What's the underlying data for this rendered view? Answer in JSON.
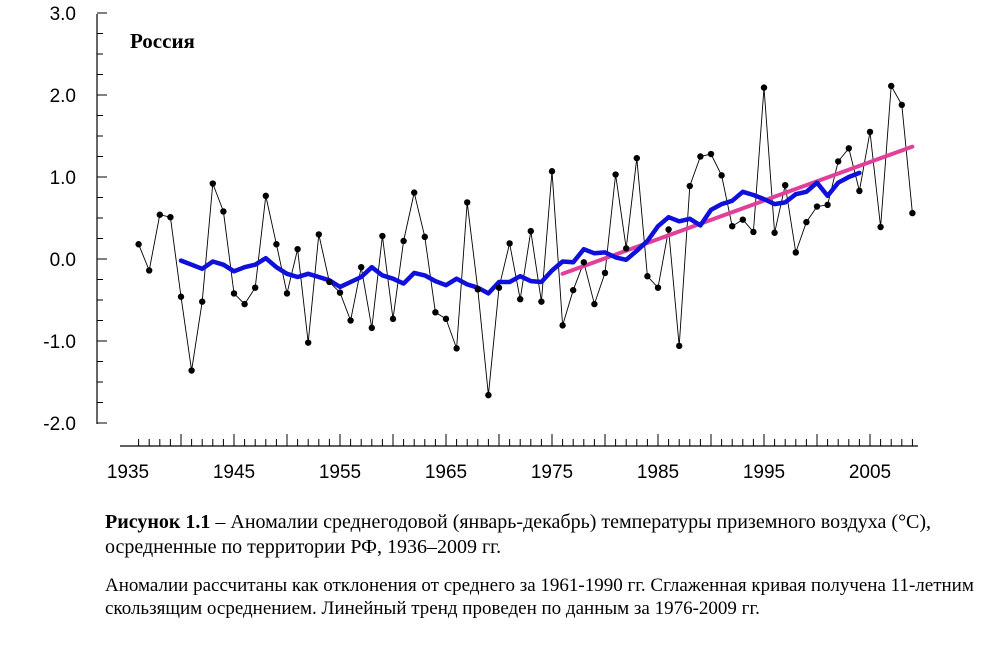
{
  "chart_data": {
    "type": "line",
    "title": "Россия",
    "xlabel": "",
    "ylabel": "",
    "xlim": [
      1933,
      2010
    ],
    "ylim": [
      -2.0,
      3.0
    ],
    "xticks": [
      1935,
      1945,
      1955,
      1965,
      1975,
      1985,
      1995,
      2005
    ],
    "yticks": [
      -2.0,
      -1.0,
      0.0,
      1.0,
      2.0,
      3.0
    ],
    "ytick_labels": [
      "-2.0",
      "-1.0",
      "0.0",
      "1.0",
      "2.0",
      "3.0"
    ],
    "grid": false,
    "colors": {
      "annual": "#000000",
      "smoothed": "#1010dd",
      "trend": "#e0409a"
    },
    "series": [
      {
        "style": "annual",
        "x": [
          1936,
          1937,
          1938,
          1939,
          1940,
          1941,
          1942,
          1943,
          1944,
          1945,
          1946,
          1947,
          1948,
          1949,
          1950,
          1951,
          1952,
          1953,
          1954,
          1955,
          1956,
          1957,
          1958,
          1959,
          1960,
          1961,
          1962,
          1963,
          1964,
          1965,
          1966,
          1967,
          1968,
          1969,
          1970,
          1971,
          1972,
          1973,
          1974,
          1975,
          1976,
          1977,
          1978,
          1979,
          1980,
          1981,
          1982,
          1983,
          1984,
          1985,
          1986,
          1987,
          1988,
          1989,
          1990,
          1991,
          1992,
          1993,
          1994,
          1995,
          1996,
          1997,
          1998,
          1999,
          2000,
          2001,
          2002,
          2003,
          2004,
          2005,
          2006,
          2007,
          2008,
          2009
        ],
        "values": [
          0.18,
          -0.14,
          0.54,
          0.51,
          -0.46,
          -1.36,
          -0.52,
          0.92,
          0.58,
          -0.42,
          -0.55,
          -0.35,
          0.77,
          0.18,
          -0.42,
          0.12,
          -1.02,
          0.3,
          -0.28,
          -0.41,
          -0.75,
          -0.1,
          -0.84,
          0.28,
          -0.73,
          0.22,
          0.81,
          0.27,
          -0.65,
          -0.73,
          -1.09,
          0.69,
          -0.37,
          -1.66,
          -0.35,
          0.19,
          -0.49,
          0.34,
          -0.52,
          1.07,
          -0.81,
          -0.38,
          -0.04,
          -0.55,
          -0.17,
          1.03,
          0.13,
          1.23,
          -0.21,
          -0.35,
          0.36,
          -1.06,
          0.89,
          1.25,
          1.28,
          1.02,
          0.4,
          0.48,
          0.33,
          2.09,
          0.32,
          0.9,
          0.08,
          0.45,
          0.64,
          0.66,
          1.19,
          1.35,
          0.83,
          1.55,
          0.39,
          2.11,
          1.88,
          0.56
        ]
      },
      {
        "style": "smoothed",
        "x": [
          1940,
          1941,
          1942,
          1943,
          1944,
          1945,
          1946,
          1947,
          1948,
          1949,
          1950,
          1951,
          1952,
          1953,
          1954,
          1955,
          1956,
          1957,
          1958,
          1959,
          1960,
          1961,
          1962,
          1963,
          1964,
          1965,
          1966,
          1967,
          1968,
          1969,
          1970,
          1971,
          1972,
          1973,
          1974,
          1975,
          1976,
          1977,
          1978,
          1979,
          1980,
          1981,
          1982,
          1983,
          1984,
          1985,
          1986,
          1987,
          1988,
          1989,
          1990,
          1991,
          1992,
          1993,
          1994,
          1995,
          1996,
          1997,
          1998,
          1999,
          2000,
          2001,
          2002,
          2003,
          2004
        ],
        "values": [
          -0.02,
          -0.07,
          -0.12,
          -0.03,
          -0.07,
          -0.15,
          -0.1,
          -0.07,
          0.01,
          -0.1,
          -0.18,
          -0.22,
          -0.18,
          -0.22,
          -0.26,
          -0.34,
          -0.28,
          -0.22,
          -0.1,
          -0.2,
          -0.24,
          -0.3,
          -0.17,
          -0.2,
          -0.27,
          -0.32,
          -0.24,
          -0.31,
          -0.35,
          -0.42,
          -0.28,
          -0.28,
          -0.21,
          -0.27,
          -0.28,
          -0.14,
          -0.03,
          -0.04,
          0.12,
          0.07,
          0.08,
          0.02,
          -0.01,
          0.1,
          0.22,
          0.4,
          0.51,
          0.46,
          0.49,
          0.41,
          0.6,
          0.67,
          0.71,
          0.82,
          0.78,
          0.73,
          0.67,
          0.69,
          0.79,
          0.82,
          0.93,
          0.77,
          0.93,
          1.0,
          1.05
        ]
      },
      {
        "style": "trend",
        "x": [
          1976,
          2009
        ],
        "values": [
          -0.18,
          1.37
        ]
      }
    ]
  },
  "caption": {
    "label": "Рисунок 1.1",
    "text": " – Аномалии среднегодовой (январь-декабрь) температуры приземного воздуха (°C), осредненные по территории РФ, 1936–2009 гг.",
    "note": "Аномалии рассчитаны как отклонения от среднего за 1961-1990 гг. Сглаженная кривая получена 11-летним скользящим осреднением. Линейный тренд проведен по данным за 1976-2009 гг."
  }
}
